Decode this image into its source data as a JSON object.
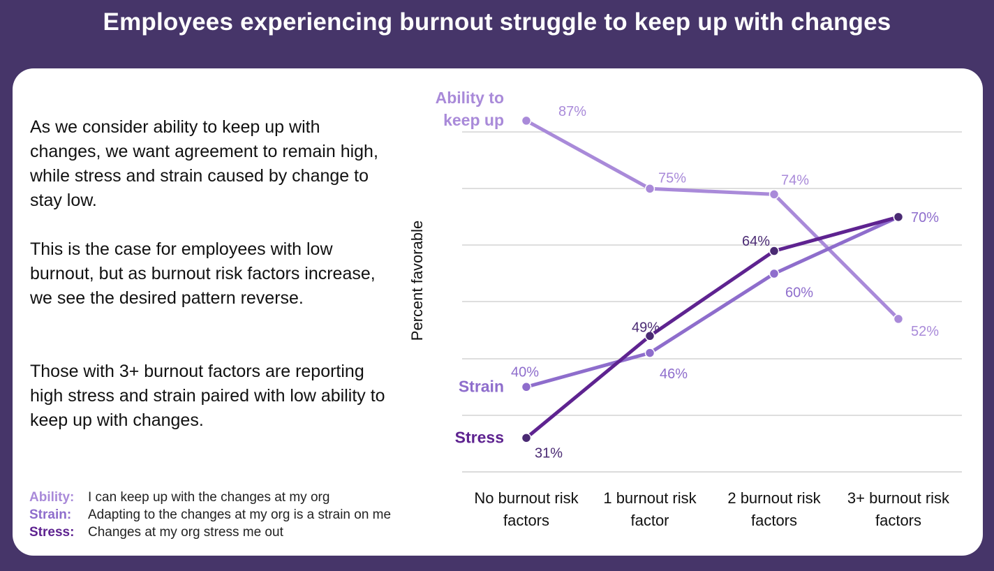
{
  "title": "Employees experiencing burnout struggle to keep up with changes",
  "body": {
    "p1": "As we consider ability to keep up with changes, we want agreement to remain high, while stress and strain caused by change to stay low.",
    "p2": "This is the case for employees with low burnout, but as burnout risk factors increase, we see the desired pattern reverse.",
    "p3": "Those with 3+ burnout factors are reporting high stress and strain paired with low ability to keep up with changes."
  },
  "definitions": [
    {
      "key": "Ability:",
      "text": "I can keep up with the changes at my org"
    },
    {
      "key": "Strain:",
      "text": "Adapting to the changes at my org is a strain on me"
    },
    {
      "key": "Stress:",
      "text": "Changes at my org stress me out"
    }
  ],
  "colors": {
    "background": "#463569",
    "ability": "#a98ad9",
    "strain": "#8e6dcc",
    "stress": "#5e2390",
    "stress_point": "#4a2a73"
  },
  "chart_data": {
    "type": "line",
    "ylabel": "Percent favorable",
    "xlabel": "",
    "categories": [
      "No burnout risk factors",
      "1 burnout risk factor",
      "2 burnout risk factors",
      "3+ burnout risk factors"
    ],
    "category_lines": [
      [
        "No burnout risk",
        "factors"
      ],
      [
        "1 burnout risk",
        "factor"
      ],
      [
        "2 burnout risk",
        "factors"
      ],
      [
        "3+ burnout risk",
        "factors"
      ]
    ],
    "series": [
      {
        "name": "Ability to keep up",
        "name_lines": [
          "Ability to",
          "keep up"
        ],
        "values": [
          87,
          75,
          74,
          52
        ],
        "labels": [
          "87%",
          "75%",
          "74%",
          "52%"
        ]
      },
      {
        "name": "Strain",
        "name_lines": [
          "Strain"
        ],
        "values": [
          40,
          46,
          60,
          70
        ],
        "labels": [
          "40%",
          "46%",
          "60%",
          "70%"
        ]
      },
      {
        "name": "Stress",
        "name_lines": [
          "Stress"
        ],
        "values": [
          31,
          49,
          64,
          70
        ],
        "labels": [
          "31%",
          "49%",
          "64%",
          ""
        ]
      }
    ],
    "ylim": [
      25,
      95
    ],
    "grid": true,
    "y_tick_labels_shown": false
  }
}
